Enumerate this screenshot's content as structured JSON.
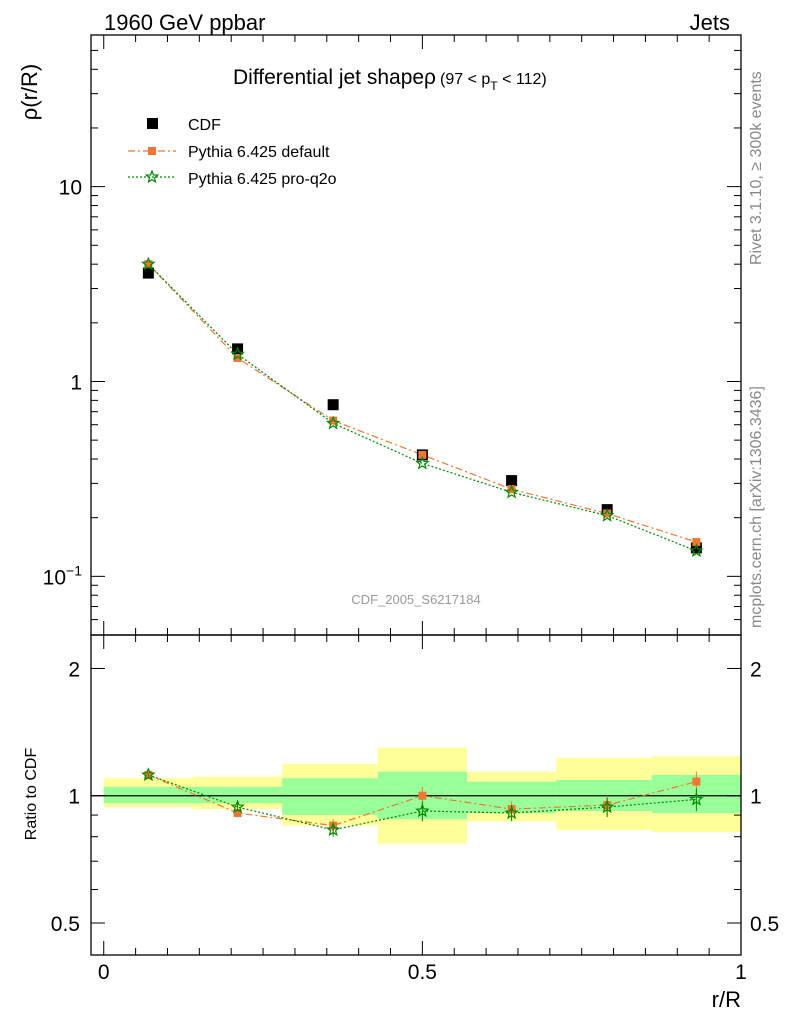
{
  "header": {
    "left": "1960 GeV ppbar",
    "right": "Jets"
  },
  "side": {
    "rivet": "Rivet 3.1.10, ≥ 300k events",
    "mcplots": "mcplots.cern.ch [arXiv:1306.3436]"
  },
  "colors": {
    "cdf": "#000000",
    "pythia_default": "#ee7733",
    "pythia_proq2o": "#008800",
    "band_inner": "#99ff99",
    "band_outer": "#ffff99"
  },
  "chart_data": [
    {
      "type": "scatter",
      "title_main": "Differential jet shapeρ",
      "title_range_pre": "(97 < p",
      "title_range_sub": "T",
      "title_range_post": " < 112)",
      "watermark": "CDF_2005_S6217184",
      "ylabel": "ρ(r/R)",
      "yscale": "log",
      "ylim": [
        0.05,
        60
      ],
      "xlim": [
        -0.02,
        1.0
      ],
      "yticks": [
        {
          "value": 10,
          "base": "10",
          "exp": ""
        },
        {
          "value": 1,
          "base": "1",
          "exp": ""
        },
        {
          "value": 0.1,
          "base": "10",
          "exp": "−1"
        }
      ],
      "legend_position": "top-left",
      "x": [
        0.07,
        0.21,
        0.36,
        0.5,
        0.64,
        0.79,
        0.93
      ],
      "series": [
        {
          "name": "CDF",
          "marker": "square",
          "color": "#000000",
          "values": [
            3.6,
            1.47,
            0.76,
            0.42,
            0.31,
            0.22,
            0.14
          ]
        },
        {
          "name": "Pythia 6.425 default",
          "marker": "square-small",
          "linestyle": "dashdot",
          "color": "#ee7733",
          "values": [
            4.0,
            1.32,
            0.63,
            0.42,
            0.28,
            0.21,
            0.15
          ]
        },
        {
          "name": "Pythia 6.425 pro-q2o",
          "marker": "star",
          "linestyle": "dotted",
          "color": "#008800",
          "values": [
            4.0,
            1.38,
            0.61,
            0.38,
            0.27,
            0.205,
            0.135
          ]
        }
      ]
    },
    {
      "type": "scatter",
      "ylabel": "Ratio to CDF",
      "xlabel": "r/R",
      "yscale": "log",
      "ylim": [
        0.42,
        2.4
      ],
      "xlim": [
        -0.02,
        1.0
      ],
      "yticks": [
        2,
        1,
        0.5
      ],
      "xticks": [
        0,
        0.5,
        1
      ],
      "bins": [
        {
          "lo": 0.0,
          "hi": 0.14,
          "inner": [
            0.96,
            1.05
          ],
          "outer": [
            0.94,
            1.1
          ]
        },
        {
          "lo": 0.14,
          "hi": 0.28,
          "inner": [
            0.96,
            1.05
          ],
          "outer": [
            0.93,
            1.11
          ]
        },
        {
          "lo": 0.28,
          "hi": 0.43,
          "inner": [
            0.9,
            1.1
          ],
          "outer": [
            0.85,
            1.19
          ]
        },
        {
          "lo": 0.43,
          "hi": 0.57,
          "inner": [
            0.88,
            1.14
          ],
          "outer": [
            0.77,
            1.3
          ]
        },
        {
          "lo": 0.57,
          "hi": 0.71,
          "inner": [
            0.91,
            1.08
          ],
          "outer": [
            0.87,
            1.14
          ]
        },
        {
          "lo": 0.71,
          "hi": 0.86,
          "inner": [
            0.92,
            1.09
          ],
          "outer": [
            0.83,
            1.23
          ]
        },
        {
          "lo": 0.86,
          "hi": 1.0,
          "inner": [
            0.91,
            1.12
          ],
          "outer": [
            0.82,
            1.24
          ]
        }
      ],
      "x": [
        0.07,
        0.21,
        0.36,
        0.5,
        0.64,
        0.79,
        0.93
      ],
      "series": [
        {
          "name": "Pythia 6.425 default",
          "color": "#ee7733",
          "values": [
            1.12,
            0.91,
            0.85,
            1.0,
            0.93,
            0.95,
            1.08
          ],
          "err": [
            0.01,
            0.02,
            0.03,
            0.05,
            0.04,
            0.05,
            0.06
          ]
        },
        {
          "name": "Pythia 6.425 pro-q2o",
          "color": "#008800",
          "values": [
            1.12,
            0.94,
            0.83,
            0.92,
            0.91,
            0.94,
            0.98
          ],
          "err": [
            0.01,
            0.02,
            0.03,
            0.05,
            0.04,
            0.05,
            0.06
          ]
        }
      ]
    }
  ]
}
